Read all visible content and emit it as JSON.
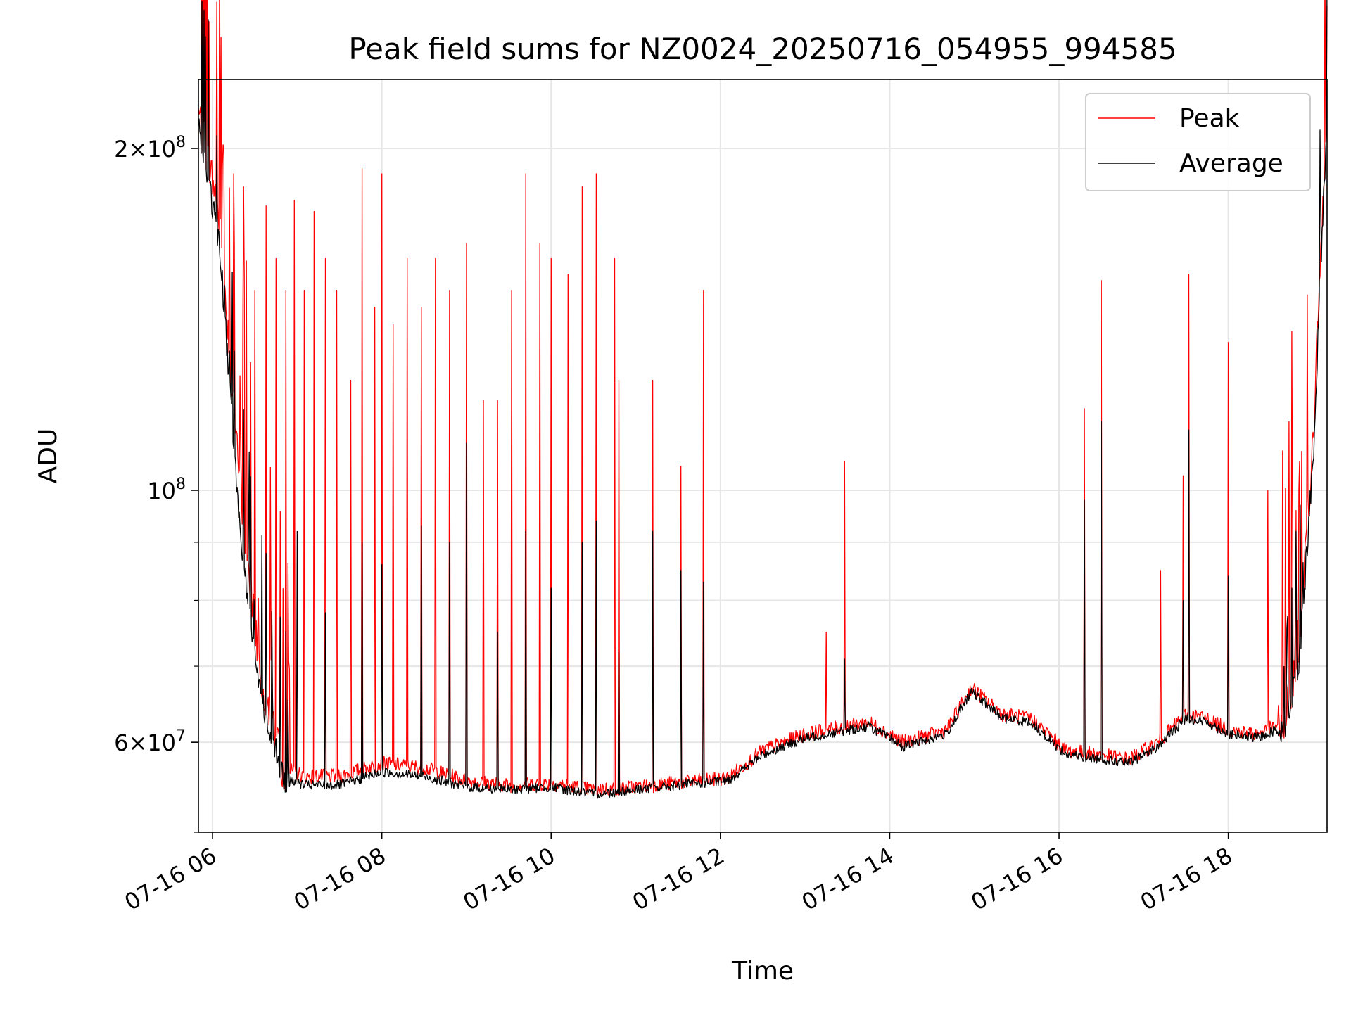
{
  "chart_data": {
    "type": "line",
    "title": "Peak field sums for NZ0024_20250716_054955_994585",
    "xlabel": "Time",
    "ylabel": "ADU",
    "yscale": "log",
    "ylim": [
      50000000,
      230000000
    ],
    "xlim": [
      "07-16 05:50",
      "07-16 19:10"
    ],
    "grid": true,
    "legend_position": "top-right",
    "x_ticks": [
      "07-16 06",
      "07-16 08",
      "07-16 10",
      "07-16 12",
      "07-16 14",
      "07-16 16",
      "07-16 18"
    ],
    "y_ticks": [
      {
        "value": 60000000,
        "mantissa": "6",
        "exponent": "7"
      },
      {
        "value": 100000000,
        "mantissa": "",
        "exponent": "8"
      },
      {
        "value": 200000000,
        "mantissa": "2",
        "exponent": "8"
      }
    ],
    "series": [
      {
        "name": "Peak",
        "color": "#ff0000",
        "points": [
          [
            "07-16 05:50",
            215000000
          ],
          [
            "07-16 06:05",
            175000000
          ],
          [
            "07-16 06:20",
            98000000
          ],
          [
            "07-16 06:35",
            68000000
          ],
          [
            "07-16 06:50",
            57000000
          ],
          [
            "07-16 07:05",
            56000000
          ],
          [
            "07-16 07:30",
            56000000
          ],
          [
            "07-16 08:00",
            57500000
          ],
          [
            "07-16 08:30",
            57000000
          ],
          [
            "07-16 09:00",
            55500000
          ],
          [
            "07-16 09:30",
            55000000
          ],
          [
            "07-16 10:00",
            55200000
          ],
          [
            "07-16 10:30",
            54500000
          ],
          [
            "07-16 11:00",
            54800000
          ],
          [
            "07-16 11:30",
            55300000
          ],
          [
            "07-16 12:05",
            55800000
          ],
          [
            "07-16 12:30",
            59000000
          ],
          [
            "07-16 13:00",
            61000000
          ],
          [
            "07-16 13:30",
            62000000
          ],
          [
            "07-16 13:45",
            62500000
          ],
          [
            "07-16 14:10",
            60000000
          ],
          [
            "07-16 14:40",
            61500000
          ],
          [
            "07-16 14:58",
            67000000
          ],
          [
            "07-16 15:20",
            63500000
          ],
          [
            "07-16 15:40",
            63000000
          ],
          [
            "07-16 16:05",
            59000000
          ],
          [
            "07-16 16:30",
            58500000
          ],
          [
            "07-16 16:50",
            58000000
          ],
          [
            "07-16 17:10",
            60000000
          ],
          [
            "07-16 17:30",
            63500000
          ],
          [
            "07-16 17:45",
            63000000
          ],
          [
            "07-16 18:00",
            61500000
          ],
          [
            "07-16 18:20",
            61000000
          ],
          [
            "07-16 18:40",
            62500000
          ],
          [
            "07-16 18:50",
            72000000
          ],
          [
            "07-16 19:00",
            110000000
          ],
          [
            "07-16 19:10",
            218000000
          ]
        ]
      },
      {
        "name": "Average",
        "color": "#000000",
        "points": [
          [
            "07-16 05:50",
            210000000
          ],
          [
            "07-16 06:05",
            165000000
          ],
          [
            "07-16 06:20",
            90000000
          ],
          [
            "07-16 06:35",
            65000000
          ],
          [
            "07-16 06:50",
            56000000
          ],
          [
            "07-16 07:05",
            55000000
          ],
          [
            "07-16 07:30",
            55000000
          ],
          [
            "07-16 08:00",
            56500000
          ],
          [
            "07-16 08:30",
            56000000
          ],
          [
            "07-16 09:00",
            54800000
          ],
          [
            "07-16 09:30",
            54500000
          ],
          [
            "07-16 10:00",
            54800000
          ],
          [
            "07-16 10:30",
            54000000
          ],
          [
            "07-16 11:00",
            54500000
          ],
          [
            "07-16 11:30",
            55000000
          ],
          [
            "07-16 12:05",
            55500000
          ],
          [
            "07-16 12:30",
            58500000
          ],
          [
            "07-16 13:00",
            60500000
          ],
          [
            "07-16 13:30",
            61500000
          ],
          [
            "07-16 13:45",
            62000000
          ],
          [
            "07-16 14:10",
            59500000
          ],
          [
            "07-16 14:40",
            61000000
          ],
          [
            "07-16 14:58",
            66500000
          ],
          [
            "07-16 15:20",
            63000000
          ],
          [
            "07-16 15:40",
            62500000
          ],
          [
            "07-16 16:05",
            58500000
          ],
          [
            "07-16 16:30",
            58000000
          ],
          [
            "07-16 16:50",
            57500000
          ],
          [
            "07-16 17:10",
            59500000
          ],
          [
            "07-16 17:30",
            63000000
          ],
          [
            "07-16 17:45",
            62500000
          ],
          [
            "07-16 18:00",
            61000000
          ],
          [
            "07-16 18:20",
            60500000
          ],
          [
            "07-16 18:40",
            62000000
          ],
          [
            "07-16 18:50",
            70000000
          ],
          [
            "07-16 19:00",
            105000000
          ],
          [
            "07-16 19:10",
            215000000
          ]
        ]
      }
    ],
    "spikes": {
      "peak": [
        [
          "07-16 06:08",
          200000000
        ],
        [
          "07-16 06:15",
          190000000
        ],
        [
          "07-16 06:22",
          185000000
        ],
        [
          "07-16 06:30",
          150000000
        ],
        [
          "07-16 06:38",
          178000000
        ],
        [
          "07-16 06:45",
          160000000
        ],
        [
          "07-16 06:52",
          150000000
        ],
        [
          "07-16 06:58",
          180000000
        ],
        [
          "07-16 07:05",
          150000000
        ],
        [
          "07-16 07:12",
          176000000
        ],
        [
          "07-16 07:20",
          160000000
        ],
        [
          "07-16 07:28",
          150000000
        ],
        [
          "07-16 07:38",
          125000000
        ],
        [
          "07-16 07:46",
          192000000
        ],
        [
          "07-16 07:55",
          145000000
        ],
        [
          "07-16 08:00",
          190000000
        ],
        [
          "07-16 08:08",
          140000000
        ],
        [
          "07-16 08:18",
          160000000
        ],
        [
          "07-16 08:28",
          145000000
        ],
        [
          "07-16 08:38",
          160000000
        ],
        [
          "07-16 08:48",
          150000000
        ],
        [
          "07-16 09:00",
          165000000
        ],
        [
          "07-16 09:12",
          120000000
        ],
        [
          "07-16 09:22",
          120000000
        ],
        [
          "07-16 09:32",
          150000000
        ],
        [
          "07-16 09:42",
          190000000
        ],
        [
          "07-16 09:52",
          165000000
        ],
        [
          "07-16 10:00",
          160000000
        ],
        [
          "07-16 10:12",
          155000000
        ],
        [
          "07-16 10:22",
          185000000
        ],
        [
          "07-16 10:32",
          190000000
        ],
        [
          "07-16 10:45",
          160000000
        ],
        [
          "07-16 10:48",
          125000000
        ],
        [
          "07-16 11:12",
          125000000
        ],
        [
          "07-16 11:32",
          105000000
        ],
        [
          "07-16 11:48",
          150000000
        ],
        [
          "07-16 13:15",
          75000000
        ],
        [
          "07-16 13:28",
          106000000
        ],
        [
          "07-16 16:18",
          118000000
        ],
        [
          "07-16 16:30",
          153000000
        ],
        [
          "07-16 17:12",
          85000000
        ],
        [
          "07-16 17:28",
          103000000
        ],
        [
          "07-16 17:32",
          155000000
        ],
        [
          "07-16 18:00",
          135000000
        ],
        [
          "07-16 18:28",
          100000000
        ],
        [
          "07-16 18:45",
          138000000
        ]
      ],
      "average": [
        [
          "07-16 06:38",
          88000000
        ],
        [
          "07-16 07:00",
          92000000
        ],
        [
          "07-16 07:20",
          78000000
        ],
        [
          "07-16 07:46",
          90000000
        ],
        [
          "07-16 08:00",
          86000000
        ],
        [
          "07-16 08:28",
          93000000
        ],
        [
          "07-16 08:48",
          90000000
        ],
        [
          "07-16 09:00",
          110000000
        ],
        [
          "07-16 09:22",
          75000000
        ],
        [
          "07-16 09:42",
          92000000
        ],
        [
          "07-16 10:00",
          82000000
        ],
        [
          "07-16 10:22",
          90000000
        ],
        [
          "07-16 10:32",
          94000000
        ],
        [
          "07-16 10:48",
          72000000
        ],
        [
          "07-16 11:12",
          92000000
        ],
        [
          "07-16 11:32",
          85000000
        ],
        [
          "07-16 11:48",
          83000000
        ],
        [
          "07-16 13:28",
          71000000
        ],
        [
          "07-16 16:18",
          98000000
        ],
        [
          "07-16 16:30",
          115000000
        ],
        [
          "07-16 17:28",
          80000000
        ],
        [
          "07-16 17:32",
          113000000
        ],
        [
          "07-16 18:00",
          84000000
        ],
        [
          "07-16 18:45",
          82000000
        ]
      ]
    }
  }
}
